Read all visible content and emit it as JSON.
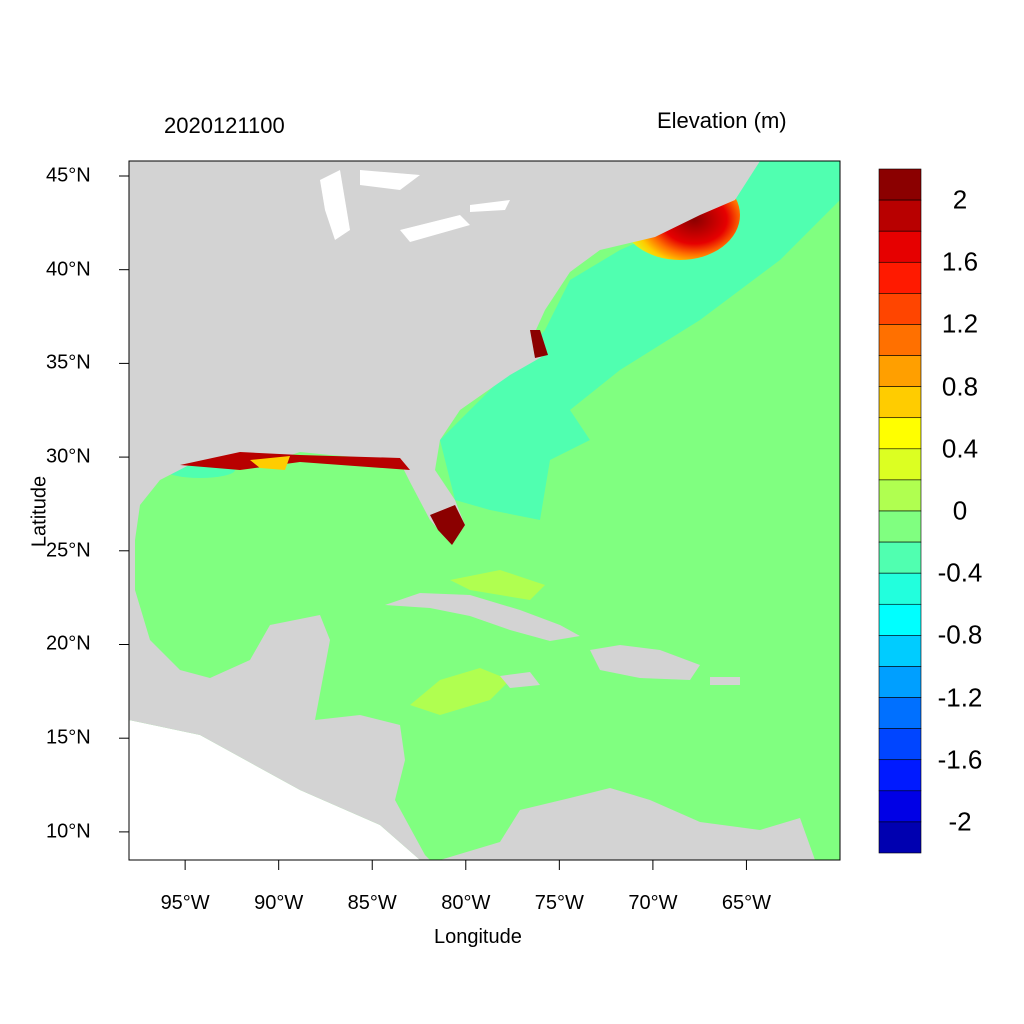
{
  "title_left": "2020121100",
  "title_right": "Elevation (m)",
  "xlabel": "Longitude",
  "ylabel": "Latitude",
  "x_ticks": [
    "95°W",
    "90°W",
    "85°W",
    "80°W",
    "75°W",
    "70°W",
    "65°W"
  ],
  "x_tick_values": [
    -95,
    -90,
    -85,
    -80,
    -75,
    -70,
    -65
  ],
  "y_ticks": [
    "45°N",
    "40°N",
    "35°N",
    "30°N",
    "25°N",
    "20°N",
    "15°N",
    "10°N"
  ],
  "y_tick_values": [
    45,
    40,
    35,
    30,
    25,
    20,
    15,
    10
  ],
  "extent": {
    "lon": [
      -98,
      -60
    ],
    "lat": [
      8.5,
      45.8
    ]
  },
  "colors": {
    "land": "#d3d3d3",
    "nodata": "#ffffff",
    "ocean_base": "#80ff80"
  },
  "colorbar": {
    "labels": [
      "2",
      "1.6",
      "1.2",
      "0.8",
      "0.4",
      "0",
      "-0.4",
      "-0.8",
      "-1.2",
      "-1.6",
      "-2"
    ],
    "label_values": [
      2,
      1.6,
      1.2,
      0.8,
      0.4,
      0,
      -0.4,
      -0.8,
      -1.2,
      -1.6,
      -2
    ],
    "bin_step": 0.2,
    "colors": [
      "#8b0000",
      "#b80000",
      "#e60000",
      "#ff1a00",
      "#ff4500",
      "#ff7000",
      "#ff9f00",
      "#ffcc00",
      "#ffff00",
      "#dcff22",
      "#b0ff50",
      "#80ff80",
      "#50ffb0",
      "#22ffdd",
      "#00ffff",
      "#00ccff",
      "#009fff",
      "#0070ff",
      "#0045ff",
      "#001aff",
      "#0000e6",
      "#0000b0"
    ]
  }
}
